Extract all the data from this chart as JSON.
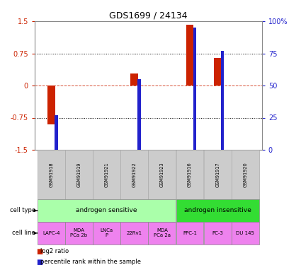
{
  "title": "GDS1699 / 24134",
  "samples": [
    "GSM91918",
    "GSM91919",
    "GSM91921",
    "GSM91922",
    "GSM91923",
    "GSM91916",
    "GSM91917",
    "GSM91920"
  ],
  "log2_ratio": [
    -0.9,
    0.0,
    0.0,
    0.28,
    0.0,
    1.42,
    0.65,
    0.0
  ],
  "percentile_rank": [
    27.0,
    0.0,
    0.0,
    55.0,
    0.0,
    95.0,
    77.0,
    0.0
  ],
  "cell_types": [
    {
      "label": "androgen sensitive",
      "start": 0,
      "end": 5,
      "color": "#aaffaa"
    },
    {
      "label": "androgen insensitive",
      "start": 5,
      "end": 8,
      "color": "#33dd33"
    }
  ],
  "cell_lines": [
    {
      "label": "LAPC-4",
      "idx": 0,
      "color": "#ee82ee"
    },
    {
      "label": "MDA\nPCa 2b",
      "idx": 1,
      "color": "#ee82ee"
    },
    {
      "label": "LNCa\nP",
      "idx": 2,
      "color": "#ee82ee"
    },
    {
      "label": "22Rv1",
      "idx": 3,
      "color": "#ee82ee"
    },
    {
      "label": "MDA\nPCa 2a",
      "idx": 4,
      "color": "#ee82ee"
    },
    {
      "label": "PPC-1",
      "idx": 5,
      "color": "#ee82ee"
    },
    {
      "label": "PC-3",
      "idx": 6,
      "color": "#ee82ee"
    },
    {
      "label": "DU 145",
      "idx": 7,
      "color": "#ee82ee"
    }
  ],
  "bar_color_red": "#cc2200",
  "bar_color_blue": "#2222cc",
  "ylim": [
    -1.5,
    1.5
  ],
  "yticks_left": [
    -1.5,
    -0.75,
    0,
    0.75,
    1.5
  ],
  "yticks_right": [
    0,
    25,
    50,
    75,
    100
  ],
  "ylabel_left_color": "#cc2200",
  "ylabel_right_color": "#2222cc",
  "legend_red": "log2 ratio",
  "legend_blue": "percentile rank within the sample",
  "bg_color": "#ffffff",
  "red_bar_width": 0.28,
  "blue_bar_width": 0.12
}
